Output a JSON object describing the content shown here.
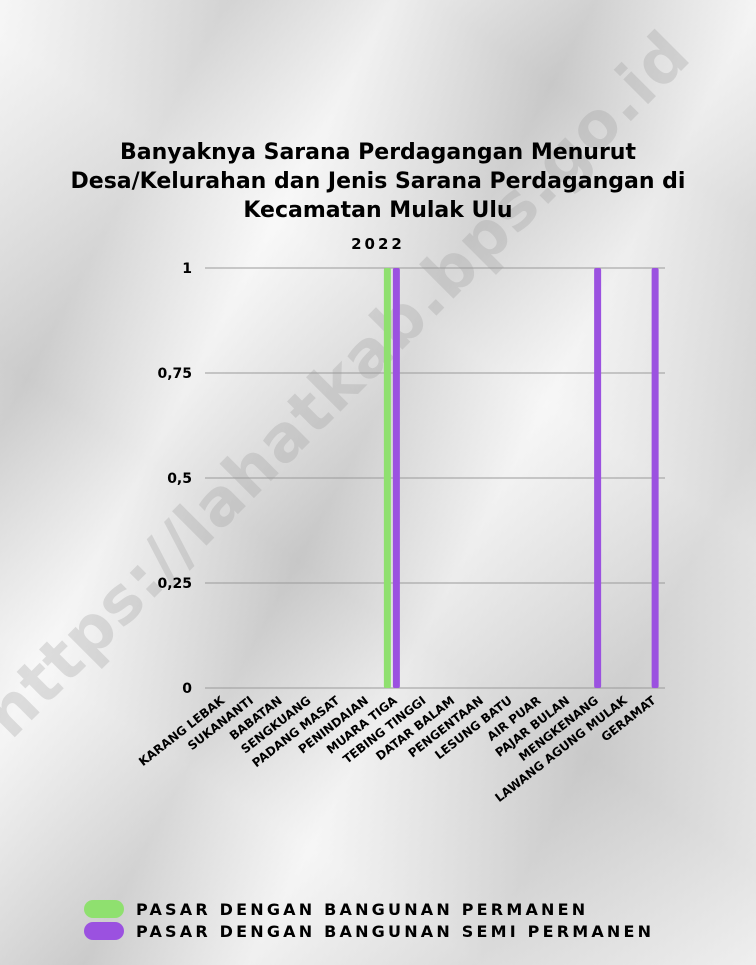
{
  "watermark": "https://lahatkab.bps.go.id",
  "colors": {
    "permanen": "#8fe06f",
    "semi_permanen": "#9b51e0"
  },
  "chart_data": {
    "type": "bar",
    "title": "Banyaknya Sarana Perdagangan Menurut Desa/Kelurahan dan Jenis Sarana Perdagangan di Kecamatan Mulak Ulu",
    "subtitle": "2022",
    "categories": [
      "KARANG LEBAK",
      "SUKANANTI",
      "BABATAN",
      "SENGKUANG",
      "PADANG MASAT",
      "PENINDAIAN",
      "MUARA TIGA",
      "TEBING TINGGI",
      "DATAR BALAM",
      "PENGENTAAN",
      "LESUNG BATU",
      "AIR PUAR",
      "PAJAR BULAN",
      "MENGKENANG",
      "LAWANG AGUNG MULAK",
      "GERAMAT"
    ],
    "series": [
      {
        "name": "PASAR DENGAN BANGUNAN PERMANEN",
        "values": [
          0,
          0,
          0,
          0,
          0,
          0,
          1,
          0,
          0,
          0,
          0,
          0,
          0,
          0,
          0,
          0
        ]
      },
      {
        "name": "PASAR DENGAN BANGUNAN SEMI PERMANEN",
        "values": [
          0,
          0,
          0,
          0,
          0,
          0,
          1,
          0,
          0,
          0,
          0,
          0,
          0,
          1,
          0,
          1
        ]
      }
    ],
    "yticks": [
      "0",
      "0,25",
      "0,5",
      "0,75",
      "1"
    ],
    "ylim": [
      0,
      1
    ],
    "grid": true,
    "legend": "bottom"
  }
}
